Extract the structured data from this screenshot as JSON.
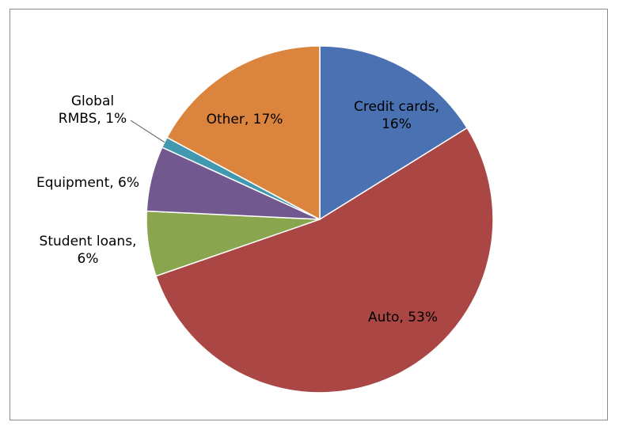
{
  "chart_data": {
    "type": "pie",
    "title": "",
    "categories": [
      "Credit cards",
      "Auto",
      "Student loans",
      "Equipment",
      "Global RMBS",
      "Other"
    ],
    "values": [
      16,
      53,
      6,
      6,
      1,
      17
    ],
    "colors": [
      "#4a72b2",
      "#aa4643",
      "#89a54e",
      "#71588f",
      "#4198af",
      "#db843d"
    ],
    "labels": [
      [
        "Credit cards,",
        "16%"
      ],
      [
        "Auto, 53%"
      ],
      [
        "Student loans,",
        "6%"
      ],
      [
        "Equipment, 6%"
      ],
      [
        "Global",
        "RMBS, 1%"
      ],
      [
        "Other, 17%"
      ]
    ],
    "start_angle_deg": 0,
    "direction": "clockwise"
  }
}
